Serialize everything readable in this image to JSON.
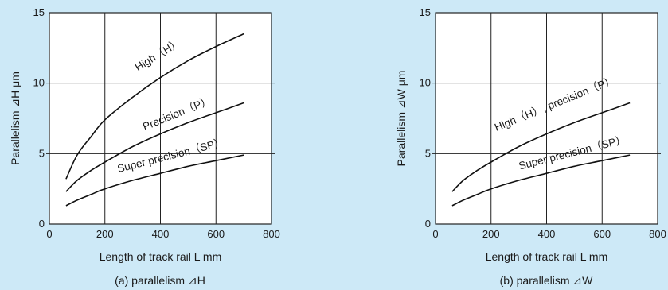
{
  "chart_data": [
    {
      "type": "line",
      "xlabel": "Length of track rail L mm",
      "ylabel": "Parallelism ⊿H μm",
      "caption": "(a)  parallelism ⊿H",
      "xlim": [
        0,
        800
      ],
      "ylim": [
        0,
        15
      ],
      "xticks": [
        "0",
        "200",
        "400",
        "600",
        "800"
      ],
      "yticks": [
        "0",
        "5",
        "10",
        "15"
      ],
      "grid": true,
      "series": [
        {
          "name": "High（H）",
          "x": [
            60,
            100,
            150,
            200,
            300,
            400,
            500,
            600,
            700
          ],
          "values": [
            3.2,
            4.9,
            6.2,
            7.4,
            9.0,
            10.4,
            11.6,
            12.6,
            13.5
          ]
        },
        {
          "name": "Precision（P）",
          "x": [
            60,
            100,
            150,
            200,
            300,
            400,
            500,
            600,
            700
          ],
          "values": [
            2.3,
            3.1,
            3.8,
            4.4,
            5.5,
            6.4,
            7.2,
            7.9,
            8.6
          ]
        },
        {
          "name": "Super precision（SP）",
          "x": [
            60,
            100,
            150,
            200,
            300,
            400,
            500,
            600,
            700
          ],
          "values": [
            1.3,
            1.7,
            2.1,
            2.5,
            3.1,
            3.6,
            4.1,
            4.5,
            4.9
          ]
        }
      ]
    },
    {
      "type": "line",
      "xlabel": "Length of track rail L mm",
      "ylabel": "Parallelism ⊿W μm",
      "caption": "(b)  parallelism ⊿W",
      "xlim": [
        0,
        800
      ],
      "ylim": [
        0,
        15
      ],
      "xticks": [
        "0",
        "200",
        "400",
        "600",
        "800"
      ],
      "yticks": [
        "0",
        "5",
        "10",
        "15"
      ],
      "grid": true,
      "series": [
        {
          "name": "High（H）, precision（P）",
          "x": [
            60,
            100,
            150,
            200,
            300,
            400,
            500,
            600,
            700
          ],
          "values": [
            2.3,
            3.1,
            3.8,
            4.4,
            5.5,
            6.4,
            7.2,
            7.9,
            8.6
          ]
        },
        {
          "name": "Super precision（SP）",
          "x": [
            60,
            100,
            150,
            200,
            300,
            400,
            500,
            600,
            700
          ],
          "values": [
            1.3,
            1.7,
            2.1,
            2.5,
            3.1,
            3.6,
            4.1,
            4.5,
            4.9
          ]
        }
      ]
    }
  ]
}
